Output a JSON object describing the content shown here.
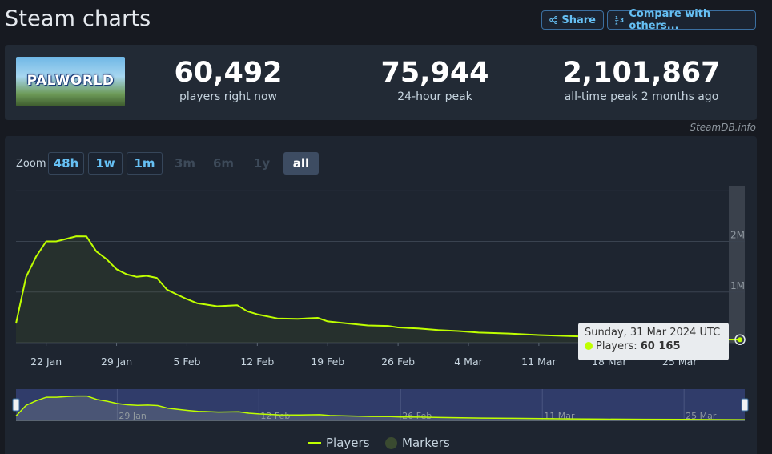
{
  "page": {
    "title": "Steam charts",
    "share_label": "Share",
    "compare_label": "Compare with others..."
  },
  "game": {
    "logo_text": "PALWORLD"
  },
  "stats": {
    "players_now": "60,492",
    "players_now_label": "players right now",
    "peak_24h": "75,944",
    "peak_24h_label": "24-hour peak",
    "all_time_peak": "2,101,867",
    "all_time_peak_label": "all-time peak 2 months ago"
  },
  "credit": "SteamDB.info",
  "zoom": {
    "label": "Zoom",
    "options": [
      {
        "label": "48h",
        "state": "on"
      },
      {
        "label": "1w",
        "state": "on"
      },
      {
        "label": "1m",
        "state": "on"
      },
      {
        "label": "3m",
        "state": "off"
      },
      {
        "label": "6m",
        "state": "off"
      },
      {
        "label": "1y",
        "state": "off"
      },
      {
        "label": "all",
        "state": "selected"
      }
    ]
  },
  "tooltip": {
    "date": "Sunday, 31 Mar 2024 UTC",
    "series_label": "Players:",
    "value": "60 165"
  },
  "legend": {
    "players": "Players",
    "markers": "Markers"
  },
  "colors": {
    "line": "#bfff00",
    "accent": "#66c0f4"
  },
  "chart_data": {
    "type": "line",
    "x_start": "2024-01-19",
    "x_end": "2024-03-31",
    "x_ticks": [
      "22 Jan",
      "29 Jan",
      "5 Feb",
      "12 Feb",
      "19 Feb",
      "26 Feb",
      "4 Mar",
      "11 Mar",
      "18 Mar",
      "25 Mar"
    ],
    "y_ticks": [
      "1M",
      "2M"
    ],
    "ylim": [
      0,
      3100000
    ],
    "navigator_ticks": [
      "29 Jan",
      "12 Feb",
      "26 Feb",
      "11 Mar",
      "25 Mar"
    ],
    "series": [
      {
        "name": "Players",
        "x": [
          "2024-01-19",
          "2024-01-20",
          "2024-01-21",
          "2024-01-22",
          "2024-01-23",
          "2024-01-24",
          "2024-01-25",
          "2024-01-26",
          "2024-01-27",
          "2024-01-28",
          "2024-01-29",
          "2024-01-30",
          "2024-01-31",
          "2024-02-01",
          "2024-02-02",
          "2024-02-03",
          "2024-02-04",
          "2024-02-05",
          "2024-02-06",
          "2024-02-08",
          "2024-02-10",
          "2024-02-11",
          "2024-02-12",
          "2024-02-14",
          "2024-02-16",
          "2024-02-18",
          "2024-02-19",
          "2024-02-21",
          "2024-02-23",
          "2024-02-25",
          "2024-02-26",
          "2024-02-28",
          "2024-03-01",
          "2024-03-03",
          "2024-03-05",
          "2024-03-08",
          "2024-03-11",
          "2024-03-14",
          "2024-03-17",
          "2024-03-21",
          "2024-03-25",
          "2024-03-28",
          "2024-03-31"
        ],
        "values": [
          380000,
          1300000,
          1700000,
          2000000,
          2000000,
          2050000,
          2101867,
          2100000,
          1800000,
          1650000,
          1450000,
          1350000,
          1300000,
          1320000,
          1280000,
          1050000,
          950000,
          860000,
          780000,
          720000,
          740000,
          620000,
          560000,
          480000,
          470000,
          490000,
          420000,
          380000,
          340000,
          330000,
          300000,
          280000,
          250000,
          230000,
          200000,
          180000,
          150000,
          130000,
          110000,
          95000,
          80000,
          70000,
          60165
        ]
      }
    ]
  }
}
